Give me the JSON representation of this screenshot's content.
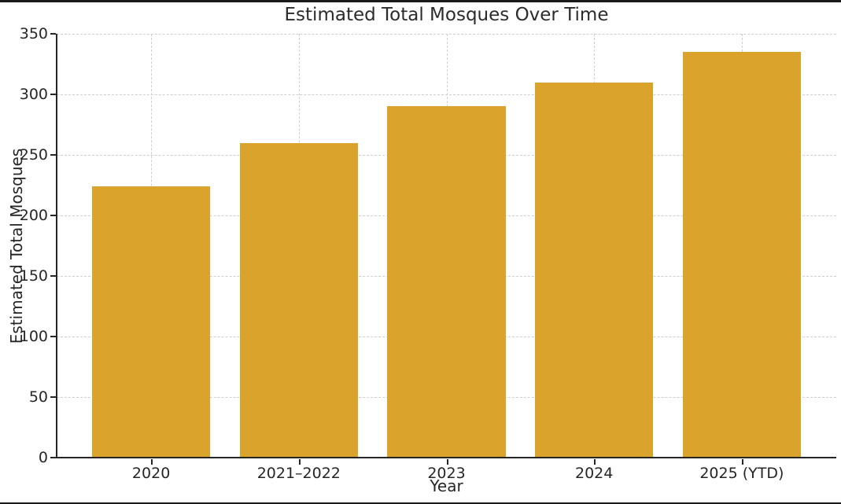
{
  "page": {
    "background_color": "#ffffff",
    "frame_border_color": "#1a1a1a"
  },
  "chart_data": {
    "type": "bar",
    "title": "Estimated Total Mosques Over Time",
    "xlabel": "Year",
    "ylabel": "Estimated Total Mosques",
    "categories": [
      "2020",
      "2021–2022",
      "2023",
      "2024",
      "2025 (YTD)"
    ],
    "values": [
      224,
      260,
      290,
      310,
      335
    ],
    "ylim": [
      0,
      350
    ],
    "yticks": [
      0,
      50,
      100,
      150,
      200,
      250,
      300,
      350
    ],
    "bar_color": "#D9A32C",
    "bar_width_fraction": 0.8,
    "grid": "both-dashed",
    "grid_color": "#cfcfcf",
    "axis_color": "#262626",
    "text_color": "#262626",
    "legend": null
  }
}
